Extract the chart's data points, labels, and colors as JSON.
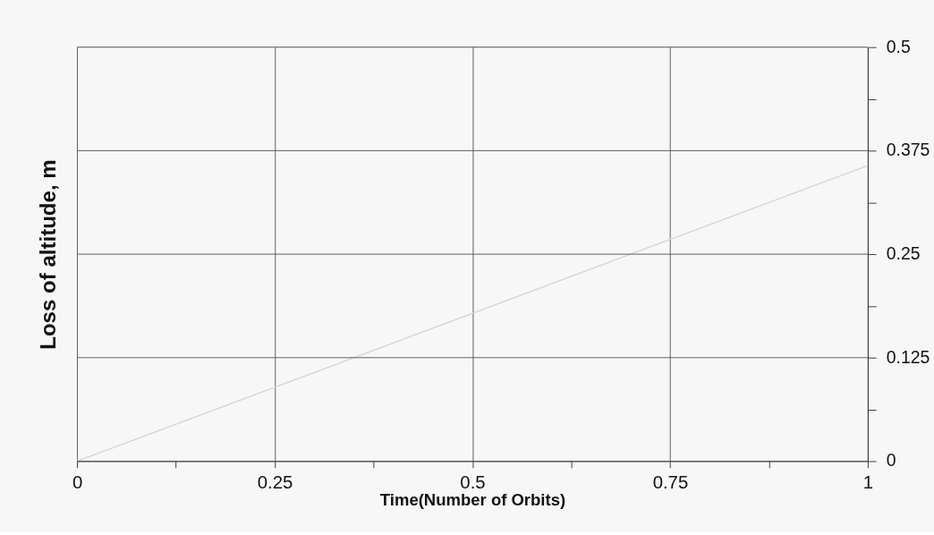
{
  "chart_data": {
    "type": "line",
    "xlabel": "Time(Number of Orbits)",
    "ylabel": "Loss of altitude, m",
    "x": [
      0,
      1
    ],
    "series": [
      {
        "color": "#d6d6d6",
        "values": [
          0,
          0.357
        ]
      }
    ],
    "xlim": [
      0,
      1
    ],
    "ylim": [
      0,
      0.5
    ],
    "xticks": [
      0,
      {
        "value": 0.125,
        "label": null
      },
      0.25,
      {
        "value": 0.375,
        "label": null
      },
      0.5,
      {
        "value": 0.625,
        "label": null
      },
      0.75,
      {
        "value": 0.875,
        "label": null
      },
      1
    ],
    "yticks": [
      0,
      {
        "value": 0.0625,
        "label": null
      },
      0.125,
      {
        "value": 0.1875,
        "label": null
      },
      0.25,
      {
        "value": 0.3125,
        "label": null
      },
      0.375,
      {
        "value": 0.4375,
        "label": null
      },
      0.5
    ],
    "grid": true,
    "marker": "none",
    "line_style": "solid"
  }
}
